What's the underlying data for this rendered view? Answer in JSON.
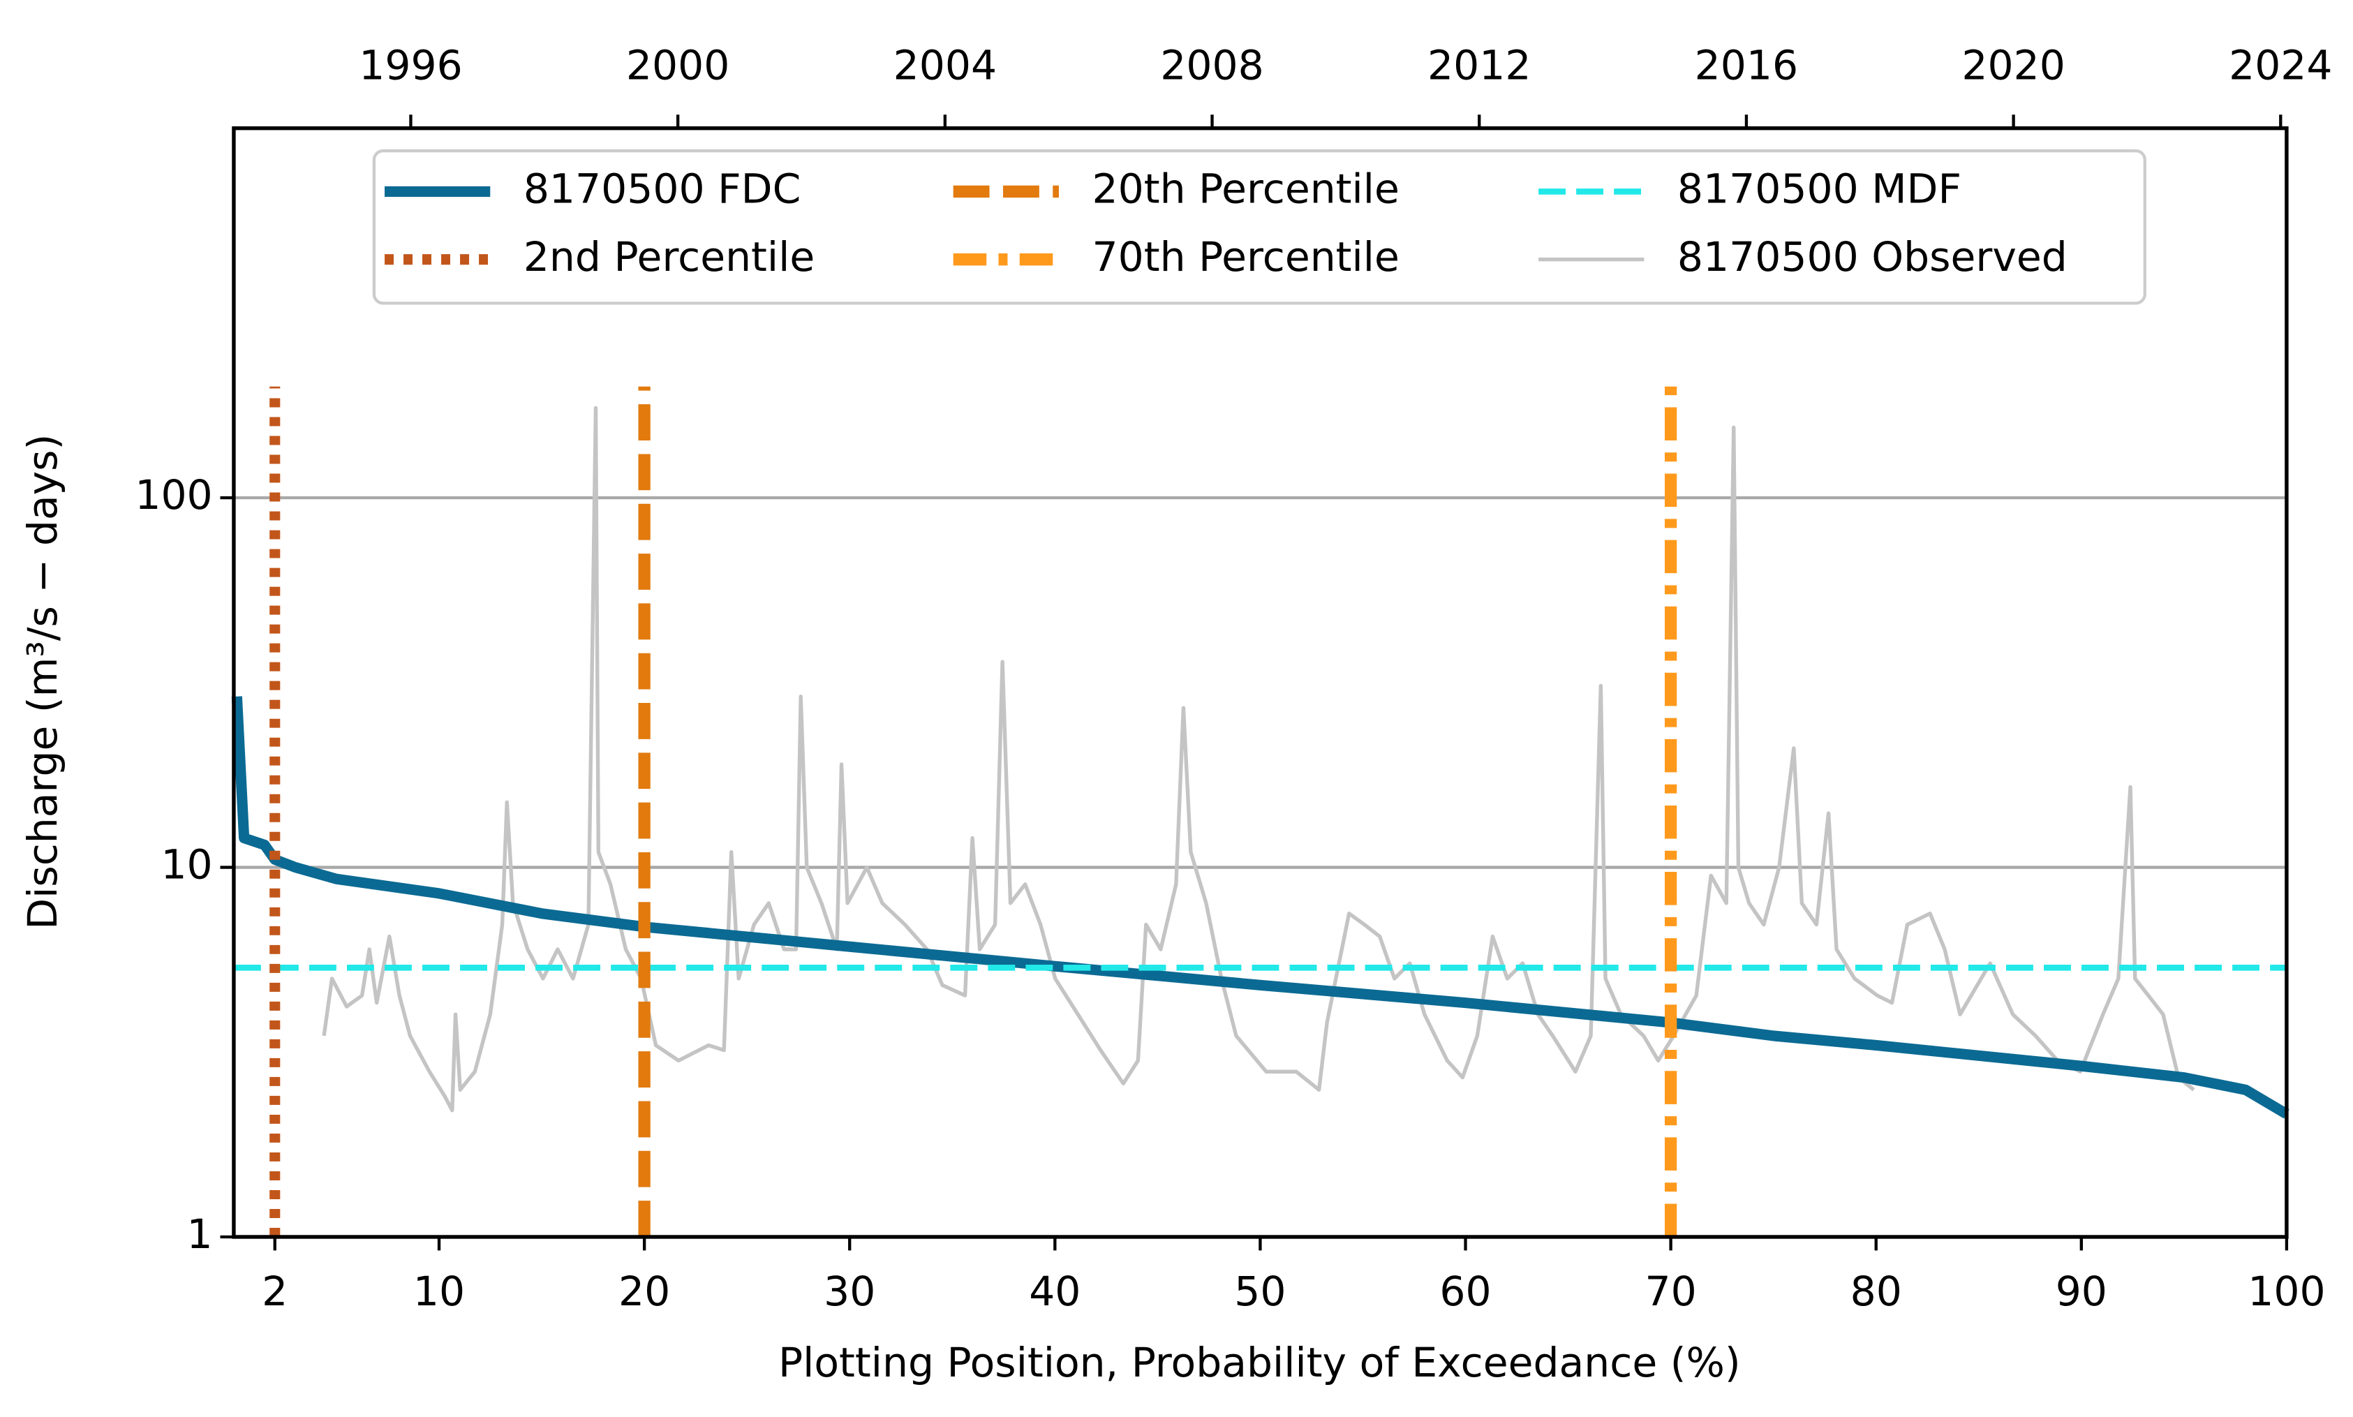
{
  "chart_data": {
    "type": "line",
    "xlabel": "Plotting Position, Probability of Exceedance (%)",
    "ylabel": "Discharge (m³/s − days)",
    "xlim": [
      0,
      100
    ],
    "xticks": [
      2,
      10,
      20,
      30,
      40,
      50,
      60,
      70,
      80,
      90,
      100
    ],
    "x2lim": [
      1993.35,
      2024.09
    ],
    "x2ticks": [
      1996,
      2000,
      2004,
      2008,
      2012,
      2016,
      2020,
      2024
    ],
    "ylim": [
      1,
      1000
    ],
    "yticks": [
      1,
      10,
      100
    ],
    "log_y": true,
    "grid": true,
    "legend": "top",
    "series": [
      {
        "name": "8170500 FDC",
        "color": "#0b6a93",
        "linestyle": "solid",
        "x": [
          0.15,
          0.5,
          1.5,
          2,
          3,
          5,
          10,
          15,
          20,
          30,
          40,
          50,
          60,
          70,
          75,
          80,
          90,
          95,
          98,
          100
        ],
        "values": [
          29,
          12,
          11.5,
          10.5,
          10,
          9.3,
          8.5,
          7.5,
          6.9,
          6.1,
          5.4,
          4.8,
          4.3,
          3.8,
          3.5,
          3.3,
          2.9,
          2.7,
          2.5,
          2.15
        ]
      },
      {
        "name": "2nd Percentile",
        "color": "#c2561a",
        "linestyle": "dotted",
        "x": [
          2,
          2
        ],
        "values": [
          1,
          200
        ]
      },
      {
        "name": "20th Percentile",
        "color": "#e27a0e",
        "linestyle": "dashed",
        "x": [
          20,
          20
        ],
        "values": [
          1,
          200
        ]
      },
      {
        "name": "70th Percentile",
        "color": "#ff991c",
        "linestyle": "dashdot",
        "x": [
          70,
          70
        ],
        "values": [
          1,
          200
        ]
      },
      {
        "name": "8170500 MDF",
        "color": "#22e8e8",
        "linestyle": "dashed-thin",
        "x": [
          0,
          100
        ],
        "values": [
          5.35,
          5.35
        ]
      },
      {
        "name": "8170500 Observed",
        "color": "#c4c4c4",
        "linestyle": "thin",
        "axis": "x2",
        "x": [
          1994.7,
          1994.82,
          1995.04,
          1995.27,
          1995.38,
          1995.49,
          1995.68,
          1995.83,
          1995.99,
          1996.28,
          1996.51,
          1996.62,
          1996.67,
          1996.74,
          1996.96,
          1997.19,
          1997.37,
          1997.44,
          1997.53,
          1997.75,
          1997.98,
          1998.2,
          1998.43,
          1998.66,
          1998.77,
          1998.81,
          1998.99,
          1999.22,
          1999.45,
          1999.67,
          2000.01,
          2000.46,
          2000.69,
          2000.8,
          2000.91,
          2001.14,
          2001.36,
          2001.59,
          2001.77,
          2001.84,
          2001.93,
          2002.15,
          2002.38,
          2002.45,
          2002.54,
          2002.83,
          2003.06,
          2003.4,
          2003.73,
          2003.96,
          2004.3,
          2004.41,
          2004.52,
          2004.75,
          2004.86,
          2004.98,
          2005.2,
          2005.43,
          2005.65,
          2005.99,
          2006.33,
          2006.67,
          2006.89,
          2007.01,
          2007.23,
          2007.46,
          2007.57,
          2007.68,
          2007.91,
          2008.14,
          2008.36,
          2008.81,
          2009.26,
          2009.6,
          2009.72,
          2010.05,
          2010.28,
          2010.51,
          2010.73,
          2010.96,
          2011.18,
          2011.52,
          2011.75,
          2011.97,
          2012.2,
          2012.42,
          2012.65,
          2012.88,
          2013.1,
          2013.44,
          2013.67,
          2013.82,
          2013.89,
          2014.12,
          2014.46,
          2014.68,
          2014.91,
          2015.25,
          2015.47,
          2015.7,
          2015.81,
          2015.88,
          2016.04,
          2016.26,
          2016.49,
          2016.71,
          2016.83,
          2017.05,
          2017.23,
          2017.35,
          2017.62,
          2017.96,
          2018.18,
          2018.41,
          2018.75,
          2018.97,
          2019.2,
          2019.65,
          2019.99,
          2020.33,
          2020.66,
          2021.0,
          2021.34,
          2021.57,
          2021.75,
          2021.82,
          2022.02,
          2022.24,
          2022.47,
          2022.7
        ],
        "values": [
          3.5,
          5,
          4.2,
          4.5,
          6,
          4.3,
          6.5,
          4.5,
          3.5,
          2.8,
          2.4,
          2.2,
          4,
          2.5,
          2.8,
          4,
          7,
          15,
          8,
          6,
          5,
          6,
          5,
          7,
          175,
          11,
          9,
          6,
          5,
          3.3,
          3,
          3.3,
          3.2,
          11,
          5,
          7,
          8,
          6,
          6,
          29,
          10,
          8,
          6,
          19,
          8,
          10,
          8,
          7,
          6,
          4.8,
          4.5,
          12,
          6,
          7,
          36,
          8,
          9,
          7,
          5,
          4,
          3.2,
          2.6,
          3,
          7,
          6,
          9,
          27,
          11,
          8,
          5,
          3.5,
          2.8,
          2.8,
          2.5,
          3.8,
          7.5,
          7,
          6.5,
          5,
          5.5,
          4,
          3,
          2.7,
          3.5,
          6.5,
          5,
          5.5,
          4,
          3.5,
          2.8,
          3.5,
          31,
          5,
          4,
          3.5,
          3,
          3.5,
          4.5,
          9.5,
          8,
          155,
          10,
          8,
          7,
          10,
          21,
          8,
          7,
          14,
          6,
          5,
          4.5,
          4.3,
          7,
          7.5,
          6,
          4,
          5.5,
          4,
          3.5,
          3,
          2.8,
          4,
          5,
          16.5,
          5,
          4.5,
          4,
          2.7,
          2.5
        ]
      }
    ]
  }
}
